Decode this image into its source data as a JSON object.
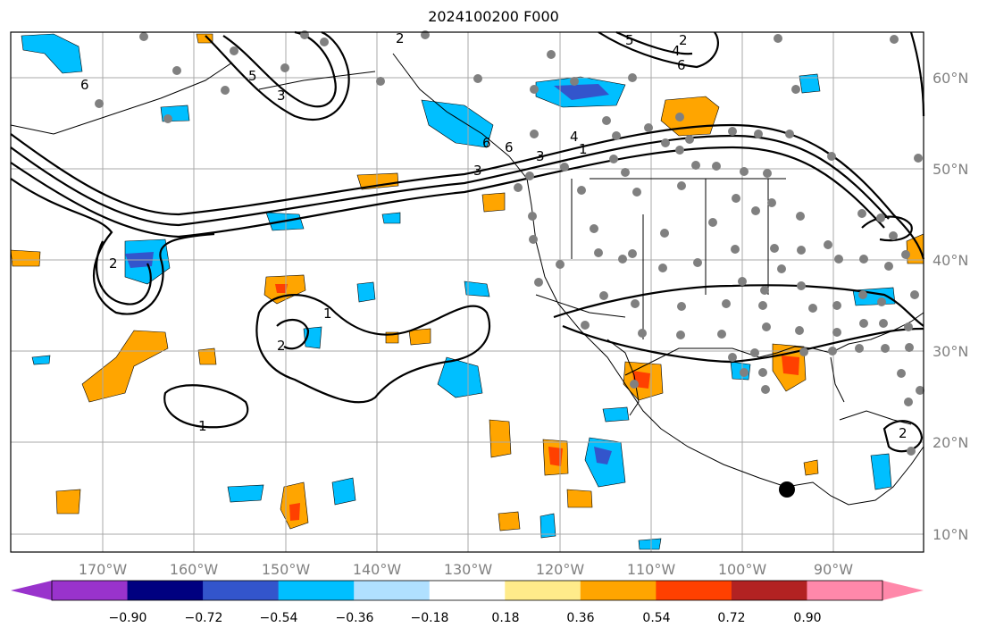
{
  "title": "2024100200 F000",
  "map": {
    "lon_labels": [
      "170°W",
      "160°W",
      "150°W",
      "140°W",
      "130°W",
      "120°W",
      "110°W",
      "100°W",
      "90°W"
    ],
    "lat_labels": [
      "60°N",
      "50°N",
      "40°N",
      "30°N",
      "20°N",
      "10°N"
    ],
    "contour_labels": [
      "2",
      "3",
      "5",
      "6",
      "6",
      "3",
      "4",
      "5",
      "6",
      "6",
      "4",
      "1",
      "2",
      "3",
      "2",
      "2",
      "1",
      "2",
      "1"
    ]
  },
  "colorbar": {
    "ticks": [
      "−0.90",
      "−0.72",
      "−0.54",
      "−0.36",
      "−0.18",
      "0.18",
      "0.36",
      "0.54",
      "0.72",
      "0.90"
    ],
    "colors": [
      "#9933cc",
      "#000080",
      "#3355cc",
      "#00bfff",
      "#b0e0ff",
      "#ffffff",
      "#ffeb8a",
      "#ffa500",
      "#ff4000",
      "#b22222",
      "#ff88aa"
    ]
  }
}
